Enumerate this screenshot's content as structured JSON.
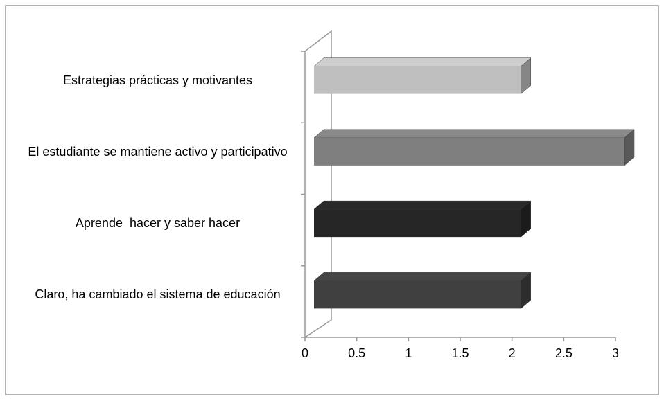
{
  "chart_data": {
    "type": "bar3d_horizontal",
    "categories": [
      "Estrategias prácticas y motivantes",
      "El estudiante se mantiene activo y participativo",
      "Aprende  hacer y saber hacer",
      "Claro, ha cambiado el sistema de educación"
    ],
    "values": [
      2,
      3,
      2,
      2
    ],
    "colors": [
      "#bfbfbf",
      "#7f7f7f",
      "#262626",
      "#404040"
    ],
    "xlim": [
      0,
      3
    ],
    "xticks": [
      0,
      0.5,
      1,
      1.5,
      2,
      2.5,
      3
    ]
  }
}
